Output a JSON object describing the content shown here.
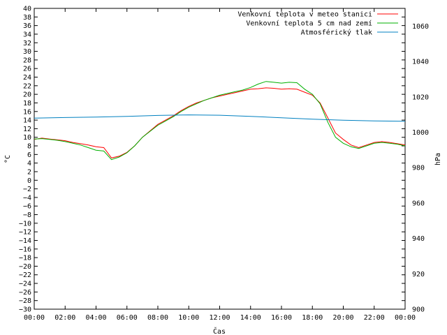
{
  "chart_data": {
    "type": "line",
    "xlabel": "Čas",
    "ylabel": "°C",
    "y2label": "hPa",
    "xlim": [
      0,
      24
    ],
    "ylim": [
      -30,
      40
    ],
    "y2lim": [
      900,
      1070
    ],
    "x_tick_labels": [
      "00:00",
      "02:00",
      "04:00",
      "06:00",
      "08:00",
      "10:00",
      "12:00",
      "14:00",
      "16:00",
      "18:00",
      "20:00",
      "22:00",
      "00:00"
    ],
    "y_tick_step": 2,
    "y2_tick_step": 20,
    "legend_position": "top-right",
    "series": [
      {
        "name": "Venkovní teplota v meteo stanici",
        "color": "#ff0000",
        "axis": "left",
        "x": [
          0,
          0.5,
          1,
          1.5,
          2,
          2.5,
          3,
          3.5,
          4,
          4.5,
          5,
          5.5,
          6,
          6.5,
          7,
          7.5,
          8,
          8.5,
          9,
          9.5,
          10,
          10.5,
          11,
          11.5,
          12,
          12.5,
          13,
          13.5,
          14,
          14.5,
          15,
          15.5,
          16,
          16.5,
          17,
          17.5,
          18,
          18.5,
          19,
          19.5,
          20,
          20.5,
          21,
          21.5,
          22,
          22.5,
          23,
          23.5,
          24
        ],
        "y": [
          9.5,
          9.8,
          9.6,
          9.4,
          9.2,
          8.8,
          8.5,
          8.2,
          7.8,
          7.6,
          5.2,
          5.6,
          6.5,
          8.0,
          10.0,
          11.5,
          13.0,
          14.0,
          15.0,
          16.2,
          17.2,
          18.0,
          18.6,
          19.2,
          19.6,
          20.0,
          20.4,
          20.8,
          21.2,
          21.3,
          21.5,
          21.4,
          21.2,
          21.3,
          21.2,
          20.5,
          19.8,
          18.0,
          14.5,
          11.0,
          9.5,
          8.2,
          7.6,
          8.2,
          8.8,
          9.0,
          8.8,
          8.5,
          8.2
        ]
      },
      {
        "name": "Venkovní teplota 5 cm nad zemí",
        "color": "#00b000",
        "axis": "left",
        "x": [
          0,
          0.5,
          1,
          1.5,
          2,
          2.5,
          3,
          3.5,
          4,
          4.5,
          5,
          5.5,
          6,
          6.5,
          7,
          7.5,
          8,
          8.5,
          9,
          9.5,
          10,
          10.5,
          11,
          11.5,
          12,
          12.5,
          13,
          13.5,
          14,
          14.5,
          15,
          15.5,
          16,
          16.5,
          17,
          17.5,
          18,
          18.5,
          19,
          19.5,
          20,
          20.5,
          21,
          21.5,
          22,
          22.5,
          23,
          23.5,
          24
        ],
        "y": [
          9.6,
          9.7,
          9.5,
          9.3,
          9.0,
          8.6,
          8.2,
          7.6,
          7.0,
          6.8,
          4.8,
          5.4,
          6.4,
          8.0,
          10.0,
          11.4,
          12.8,
          13.8,
          14.8,
          16.0,
          17.0,
          17.8,
          18.6,
          19.2,
          19.8,
          20.2,
          20.6,
          21.0,
          21.6,
          22.4,
          23.0,
          22.8,
          22.6,
          22.8,
          22.7,
          21.2,
          20.0,
          17.8,
          13.5,
          10.0,
          8.6,
          7.8,
          7.4,
          8.0,
          8.6,
          8.8,
          8.6,
          8.4,
          8.0
        ]
      },
      {
        "name": "Atmosférický tlak",
        "color": "#0080c0",
        "axis": "right",
        "x": [
          0,
          2,
          4,
          6,
          8,
          10,
          12,
          14,
          16,
          18,
          20,
          22,
          24
        ],
        "y": [
          1008.0,
          1008.3,
          1008.6,
          1009.0,
          1009.5,
          1009.8,
          1009.6,
          1009.0,
          1008.2,
          1007.4,
          1006.8,
          1006.4,
          1006.2
        ]
      }
    ]
  }
}
